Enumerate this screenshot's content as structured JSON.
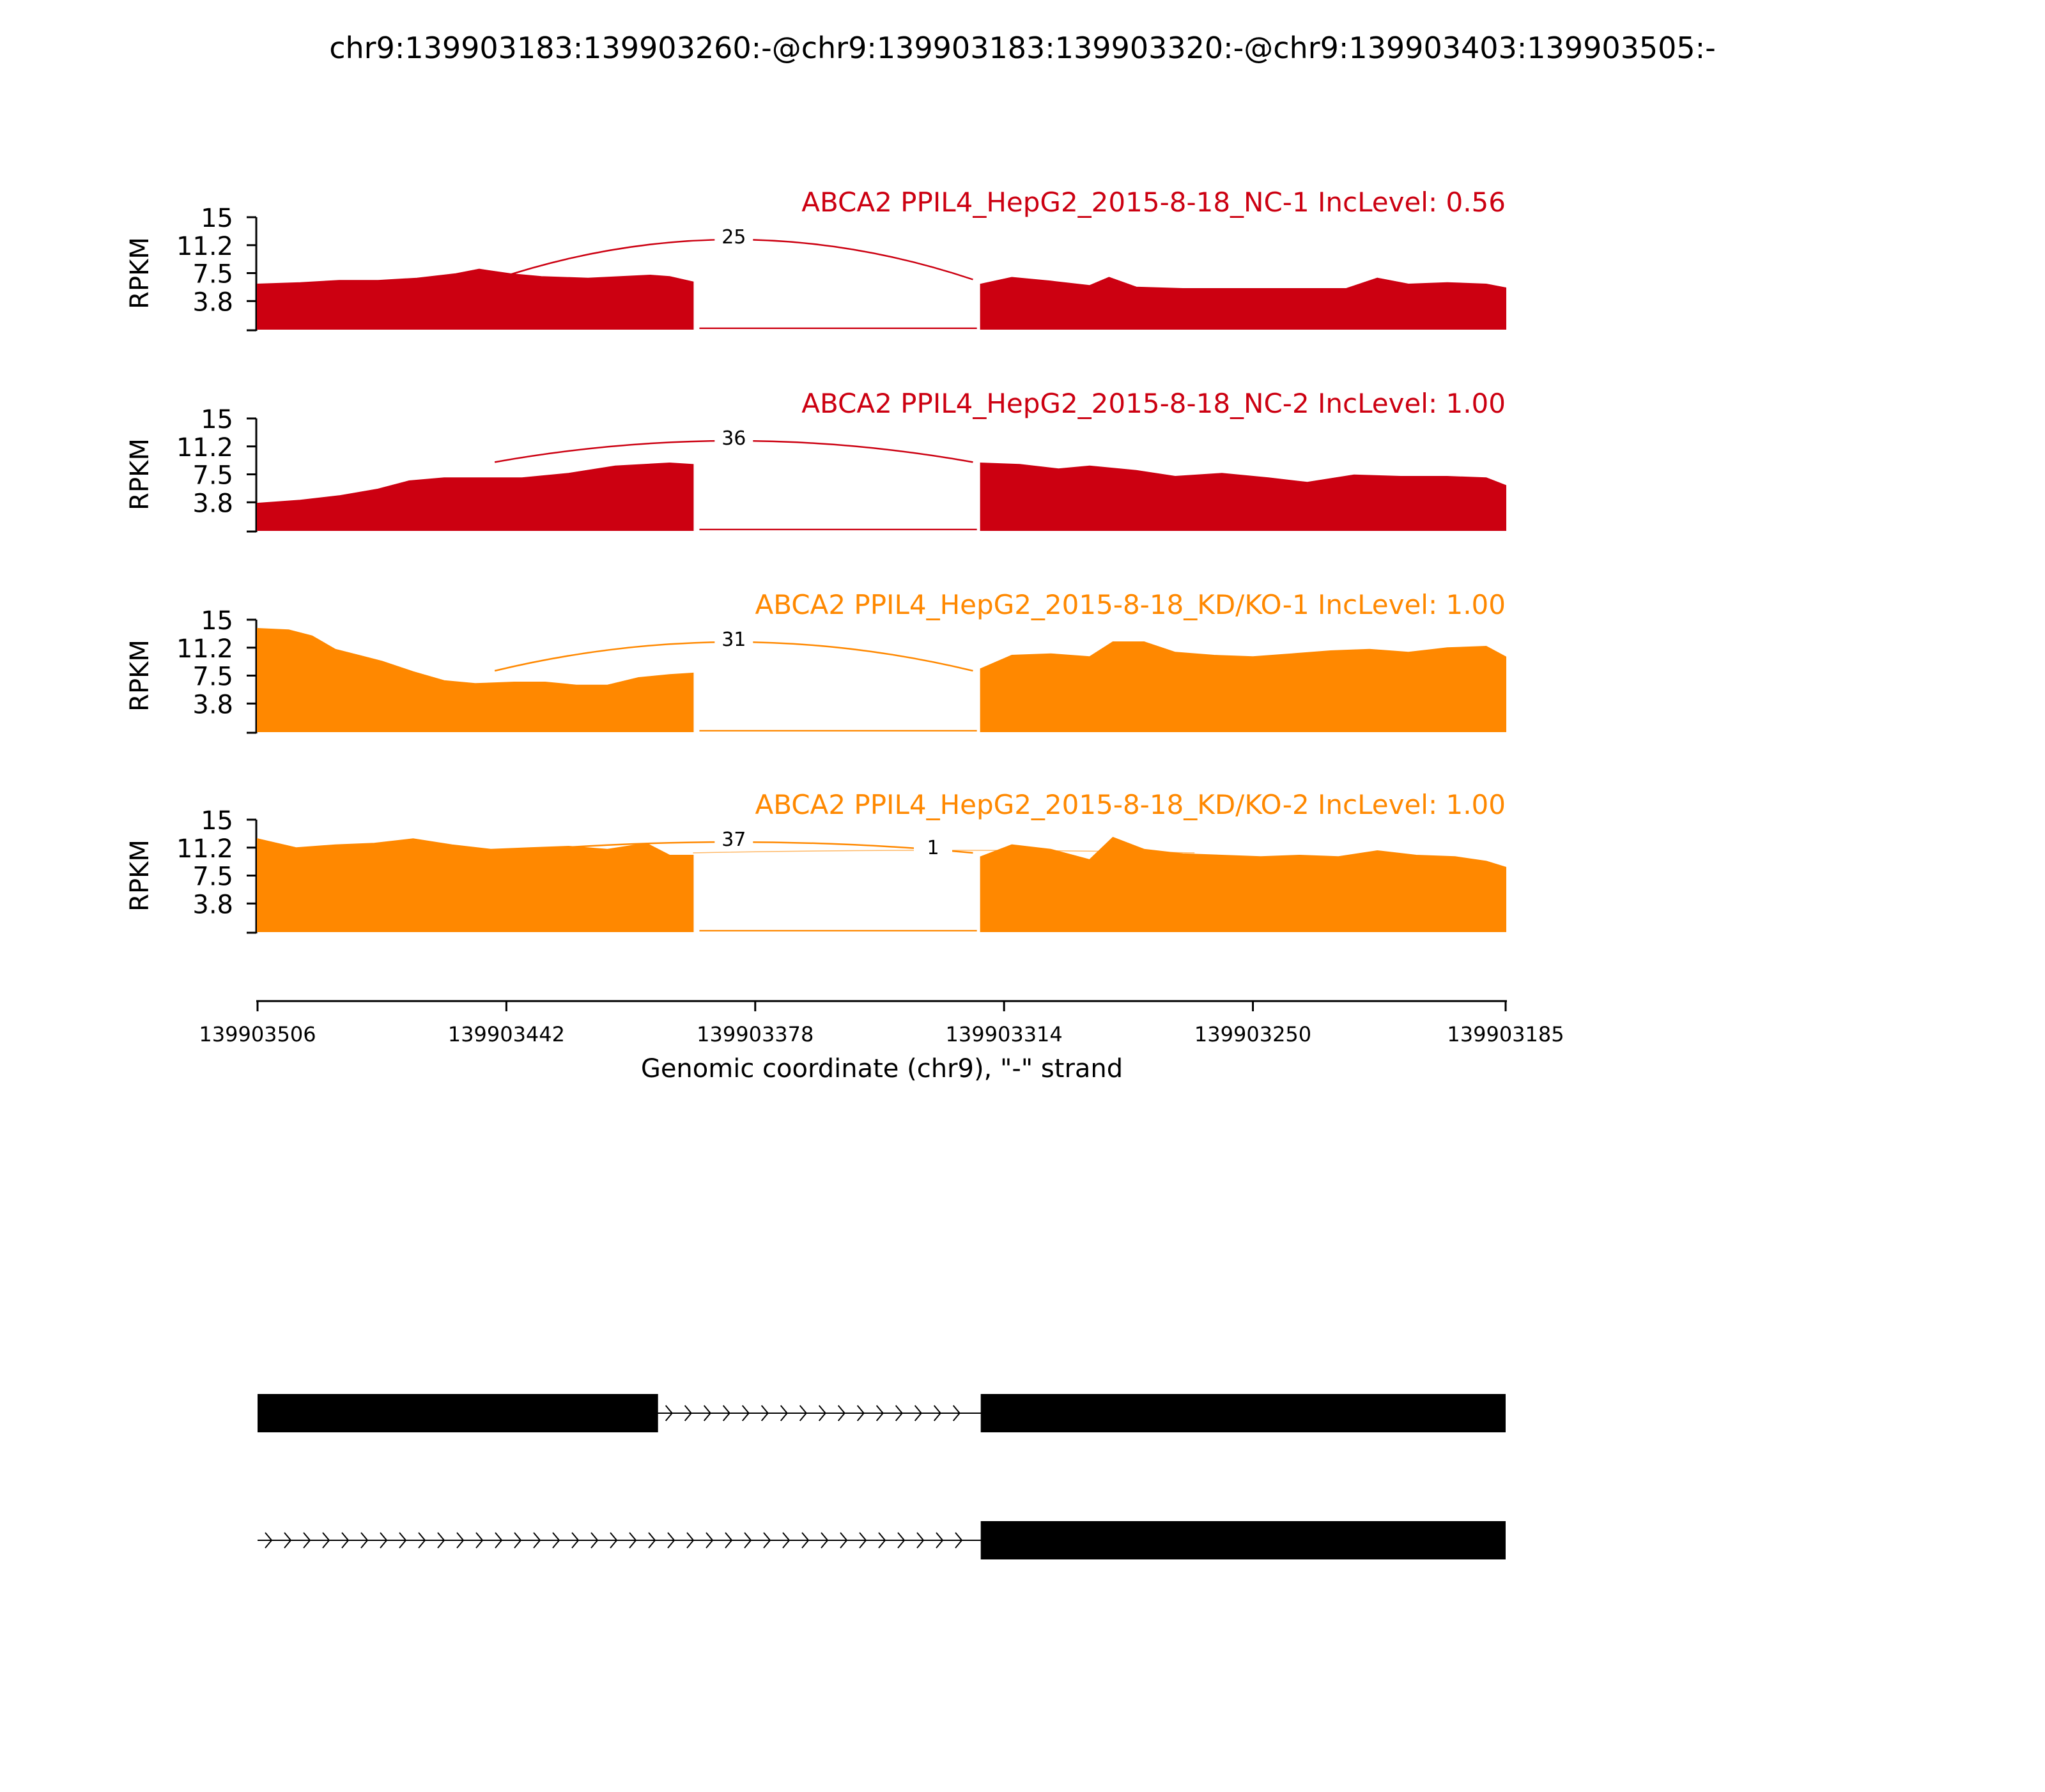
{
  "chart_data": {
    "type": "area",
    "title": "chr9:139903183:139903260:-@chr9:139903183:139903320:-@chr9:139903403:139903505:-",
    "ylabel": "RPKM",
    "yticks": [
      "15",
      "11.2",
      "7.5",
      "3.8"
    ],
    "ylim": [
      0,
      15
    ],
    "xlabel": "Genomic coordinate (chr9), \"-\" strand",
    "xlim": [
      139903506,
      139903185
    ],
    "xticks": [
      {
        "value": 139903506,
        "label": "139903506"
      },
      {
        "value": 139903442,
        "label": "139903442"
      },
      {
        "value": 139903378,
        "label": "139903378"
      },
      {
        "value": 139903314,
        "label": "139903314"
      },
      {
        "value": 139903250,
        "label": "139903250"
      },
      {
        "value": 139903185,
        "label": "139903185"
      }
    ],
    "series": [
      {
        "name": "ABCA2 PPIL4_HepG2_2015-8-18_NC-1 IncLevel: 0.56",
        "color": "#cc0011",
        "points": [
          [
            139903506,
            6.0
          ],
          [
            139903495,
            6.2
          ],
          [
            139903485,
            6.5
          ],
          [
            139903475,
            6.5
          ],
          [
            139903465,
            6.8
          ],
          [
            139903455,
            7.4
          ],
          [
            139903449,
            8.0
          ],
          [
            139903441,
            7.4
          ],
          [
            139903433,
            7.0
          ],
          [
            139903421,
            6.8
          ],
          [
            139903405,
            7.2
          ],
          [
            139903400,
            7.0
          ],
          [
            139903394,
            6.3
          ],
          [
            139903320,
            6.0
          ],
          [
            139903312,
            6.9
          ],
          [
            139903302,
            6.4
          ],
          [
            139903292,
            5.8
          ],
          [
            139903287,
            6.9
          ],
          [
            139903280,
            5.6
          ],
          [
            139903268,
            5.4
          ],
          [
            139903254,
            5.4
          ],
          [
            139903240,
            5.4
          ],
          [
            139903226,
            5.4
          ],
          [
            139903218,
            6.8
          ],
          [
            139903210,
            6.0
          ],
          [
            139903200,
            6.2
          ],
          [
            139903190,
            6.0
          ],
          [
            139903185,
            5.5
          ]
        ]
      },
      {
        "name": "ABCA2 PPIL4_HepG2_2015-8-18_NC-2 IncLevel: 1.00",
        "color": "#cc0011",
        "points": [
          [
            139903506,
            3.6
          ],
          [
            139903495,
            4.0
          ],
          [
            139903485,
            4.6
          ],
          [
            139903475,
            5.5
          ],
          [
            139903467,
            6.6
          ],
          [
            139903458,
            7.0
          ],
          [
            139903448,
            7.0
          ],
          [
            139903438,
            7.0
          ],
          [
            139903426,
            7.6
          ],
          [
            139903414,
            8.6
          ],
          [
            139903400,
            9.0
          ],
          [
            139903394,
            8.8
          ],
          [
            139903320,
            9.0
          ],
          [
            139903310,
            8.8
          ],
          [
            139903300,
            8.2
          ],
          [
            139903292,
            8.6
          ],
          [
            139903280,
            8.0
          ],
          [
            139903270,
            7.2
          ],
          [
            139903258,
            7.6
          ],
          [
            139903246,
            7.0
          ],
          [
            139903236,
            6.4
          ],
          [
            139903224,
            7.4
          ],
          [
            139903212,
            7.2
          ],
          [
            139903200,
            7.2
          ],
          [
            139903190,
            7.0
          ],
          [
            139903185,
            6.0
          ]
        ]
      },
      {
        "name": "ABCA2 PPIL4_HepG2_2015-8-18_KD/KO-1 IncLevel: 1.00",
        "color": "#ff8800",
        "points": [
          [
            139903506,
            13.8
          ],
          [
            139903498,
            13.6
          ],
          [
            139903492,
            12.8
          ],
          [
            139903486,
            11.0
          ],
          [
            139903480,
            10.2
          ],
          [
            139903474,
            9.4
          ],
          [
            139903466,
            8.0
          ],
          [
            139903458,
            6.8
          ],
          [
            139903450,
            6.4
          ],
          [
            139903440,
            6.6
          ],
          [
            139903432,
            6.6
          ],
          [
            139903424,
            6.2
          ],
          [
            139903416,
            6.2
          ],
          [
            139903408,
            7.2
          ],
          [
            139903400,
            7.6
          ],
          [
            139903394,
            7.8
          ],
          [
            139903320,
            8.4
          ],
          [
            139903312,
            10.2
          ],
          [
            139903302,
            10.4
          ],
          [
            139903292,
            10.0
          ],
          [
            139903286,
            12.0
          ],
          [
            139903278,
            12.0
          ],
          [
            139903270,
            10.6
          ],
          [
            139903260,
            10.2
          ],
          [
            139903250,
            10.0
          ],
          [
            139903240,
            10.4
          ],
          [
            139903230,
            10.8
          ],
          [
            139903220,
            11.0
          ],
          [
            139903210,
            10.6
          ],
          [
            139903200,
            11.2
          ],
          [
            139903190,
            11.4
          ],
          [
            139903185,
            10.0
          ]
        ]
      },
      {
        "name": "ABCA2 PPIL4_HepG2_2015-8-18_KD/KO-2 IncLevel: 1.00",
        "color": "#ff8800",
        "points": [
          [
            139903506,
            12.4
          ],
          [
            139903496,
            11.2
          ],
          [
            139903486,
            11.6
          ],
          [
            139903476,
            11.8
          ],
          [
            139903466,
            12.4
          ],
          [
            139903456,
            11.6
          ],
          [
            139903446,
            11.0
          ],
          [
            139903436,
            11.2
          ],
          [
            139903426,
            11.4
          ],
          [
            139903416,
            11.0
          ],
          [
            139903406,
            11.8
          ],
          [
            139903400,
            10.2
          ],
          [
            139903394,
            10.2
          ],
          [
            139903320,
            10.0
          ],
          [
            139903312,
            11.6
          ],
          [
            139903302,
            11.0
          ],
          [
            139903292,
            9.6
          ],
          [
            139903286,
            12.6
          ],
          [
            139903278,
            11.0
          ],
          [
            139903268,
            10.4
          ],
          [
            139903258,
            10.2
          ],
          [
            139903248,
            10.0
          ],
          [
            139903238,
            10.2
          ],
          [
            139903228,
            10.0
          ],
          [
            139903218,
            10.8
          ],
          [
            139903208,
            10.2
          ],
          [
            139903198,
            10.0
          ],
          [
            139903190,
            9.4
          ],
          [
            139903185,
            8.6
          ]
        ]
      }
    ],
    "gap_level": 0.2,
    "junctions": [
      [
        {
          "start": 139903445,
          "end": 139903322,
          "count": "25"
        }
      ],
      [
        {
          "start": 139903445,
          "end": 139903322,
          "count": "36"
        }
      ],
      [
        {
          "start": 139903445,
          "end": 139903322,
          "count": "31"
        }
      ],
      [
        {
          "start": 139903445,
          "end": 139903322,
          "count": "37"
        },
        {
          "start": 139903394,
          "end": 139903265,
          "count": "1"
        }
      ]
    ],
    "gene_models": [
      {
        "exons": [
          [
            139903506,
            139903403
          ],
          [
            139903320,
            139903185
          ]
        ],
        "line": [
          139903506,
          139903185
        ]
      },
      {
        "exons": [
          [
            139903320,
            139903185
          ]
        ],
        "line": [
          139903506,
          139903185
        ]
      }
    ]
  }
}
